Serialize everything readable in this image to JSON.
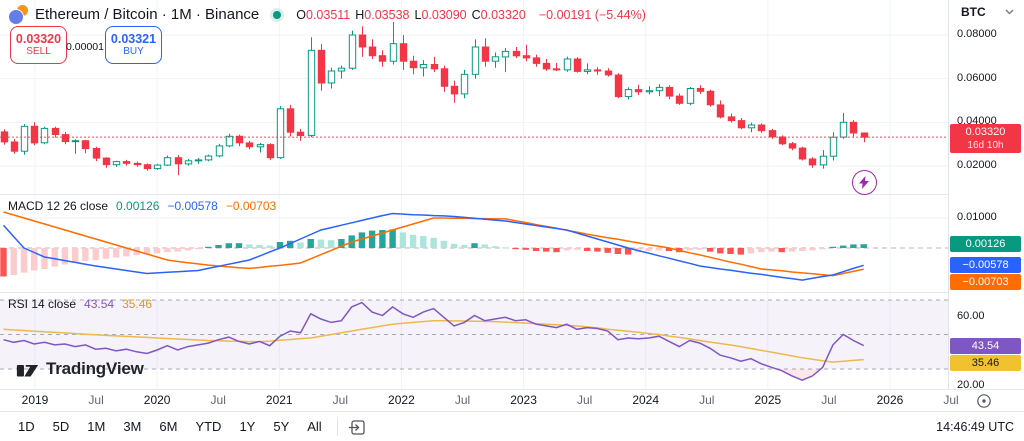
{
  "header": {
    "title": "Ethereum / Bitcoin · 1M · Binance",
    "ohlc": {
      "pairs": [
        {
          "label": "O",
          "value": "0.03511"
        },
        {
          "label": "H",
          "value": "0.03538"
        },
        {
          "label": "L",
          "value": "0.03090"
        },
        {
          "label": "C",
          "value": "0.03320"
        }
      ],
      "change": "−0.00191 (−5.44%)"
    },
    "sell": {
      "price": "0.03320",
      "label": "SELL"
    },
    "spread": "0.00001",
    "buy": {
      "price": "0.03321",
      "label": "BUY"
    }
  },
  "price_axis": {
    "currency": "BTC",
    "ticks": [
      {
        "value": 0.08,
        "label": "0.08000"
      },
      {
        "value": 0.06,
        "label": "0.06000"
      },
      {
        "value": 0.04,
        "label": "0.04000"
      },
      {
        "value": 0.02,
        "label": "0.02000"
      }
    ],
    "last_price_badge": {
      "price": "0.03320",
      "countdown": "16d 10h"
    }
  },
  "macd_panel": {
    "title": "MACD 12 26 close",
    "hist_value": "0.00126",
    "macd_value": "−0.00578",
    "signal_value": "−0.00703",
    "axis_tick": "0.01000"
  },
  "rsi_panel": {
    "title": "RSI 14 close",
    "value": "43.54",
    "ma_value": "35.46",
    "axis_ticks": [
      {
        "value": 60,
        "label": "60.00"
      },
      {
        "value": 20,
        "label": "20.00"
      }
    ]
  },
  "time_axis": {
    "labels": [
      "2019",
      "Jul",
      "2020",
      "Jul",
      "2021",
      "Jul",
      "2022",
      "Jul",
      "2023",
      "Jul",
      "2024",
      "Jul",
      "2025",
      "Jul",
      "2026",
      "Jul"
    ]
  },
  "toolbar": {
    "ranges": [
      "1D",
      "5D",
      "1M",
      "3M",
      "6M",
      "YTD",
      "1Y",
      "5Y",
      "All"
    ],
    "clock": "14:46:49 UTC"
  },
  "watermark": "TradingView",
  "colors": {
    "up": "#089981",
    "down": "#F23645",
    "macd_line": "#2962FF",
    "signal_line": "#FF6D00",
    "hist_grow_above": "#26A69A",
    "hist_fall_above": "#ACE5DC",
    "hist_fall_below": "#FF5252",
    "hist_grow_below": "#FCCBCD",
    "rsi_line": "#7E57C2",
    "rsi_ma_line": "#EDB94C",
    "grid": "#F0F3FA",
    "last_price_line": "#F23645"
  },
  "chart_data": [
    {
      "type": "candlestick",
      "title": "Ethereum / Bitcoin 1M Binance",
      "x_start": "2018-10",
      "x_interval": "1 month",
      "ylim": [
        0.0067,
        0.096
      ],
      "y_ticks": [
        0.08,
        0.06,
        0.04,
        0.02
      ],
      "last_price": 0.0332,
      "ohlc": [
        [
          0.0356,
          0.0368,
          0.0298,
          0.031
        ],
        [
          0.031,
          0.0324,
          0.0256,
          0.0268
        ],
        [
          0.0268,
          0.0392,
          0.0252,
          0.0382
        ],
        [
          0.0382,
          0.04,
          0.0295,
          0.0306
        ],
        [
          0.0306,
          0.038,
          0.03,
          0.0372
        ],
        [
          0.0372,
          0.038,
          0.033,
          0.0344
        ],
        [
          0.0344,
          0.0356,
          0.03,
          0.0312
        ],
        [
          0.0312,
          0.0322,
          0.0256,
          0.0316
        ],
        [
          0.0316,
          0.032,
          0.0258,
          0.028
        ],
        [
          0.028,
          0.0288,
          0.0222,
          0.0236
        ],
        [
          0.0236,
          0.024,
          0.0192,
          0.0206
        ],
        [
          0.0206,
          0.0224,
          0.0196,
          0.022
        ],
        [
          0.022,
          0.0228,
          0.0202,
          0.0212
        ],
        [
          0.0212,
          0.022,
          0.0196,
          0.0206
        ],
        [
          0.0206,
          0.0212,
          0.0178,
          0.0188
        ],
        [
          0.0188,
          0.021,
          0.0182,
          0.0204
        ],
        [
          0.0204,
          0.0248,
          0.02,
          0.0238
        ],
        [
          0.0238,
          0.025,
          0.0158,
          0.021
        ],
        [
          0.021,
          0.0232,
          0.0202,
          0.0224
        ],
        [
          0.0224,
          0.0236,
          0.021,
          0.0228
        ],
        [
          0.0228,
          0.0252,
          0.0222,
          0.0246
        ],
        [
          0.0246,
          0.0302,
          0.024,
          0.0292
        ],
        [
          0.0292,
          0.0348,
          0.0286,
          0.0336
        ],
        [
          0.0336,
          0.0344,
          0.029,
          0.0306
        ],
        [
          0.0306,
          0.0316,
          0.0276,
          0.0288
        ],
        [
          0.0288,
          0.0306,
          0.0262,
          0.0298
        ],
        [
          0.0298,
          0.0304,
          0.0228,
          0.0238
        ],
        [
          0.0238,
          0.0475,
          0.0232,
          0.0462
        ],
        [
          0.0462,
          0.048,
          0.0335,
          0.0355
        ],
        [
          0.0355,
          0.037,
          0.0315,
          0.034
        ],
        [
          0.034,
          0.079,
          0.0332,
          0.073
        ],
        [
          0.073,
          0.076,
          0.0545,
          0.058
        ],
        [
          0.058,
          0.065,
          0.0555,
          0.0635
        ],
        [
          0.0635,
          0.066,
          0.06,
          0.0648
        ],
        [
          0.0648,
          0.082,
          0.064,
          0.08
        ],
        [
          0.08,
          0.084,
          0.07,
          0.0745
        ],
        [
          0.0745,
          0.078,
          0.069,
          0.0705
        ],
        [
          0.0705,
          0.073,
          0.0655,
          0.068
        ],
        [
          0.068,
          0.086,
          0.0665,
          0.076
        ],
        [
          0.076,
          0.08,
          0.064,
          0.068
        ],
        [
          0.068,
          0.0705,
          0.062,
          0.065
        ],
        [
          0.065,
          0.0685,
          0.061,
          0.0665
        ],
        [
          0.0665,
          0.07,
          0.063,
          0.0645
        ],
        [
          0.0645,
          0.066,
          0.054,
          0.0565
        ],
        [
          0.0565,
          0.059,
          0.049,
          0.053
        ],
        [
          0.053,
          0.064,
          0.051,
          0.062
        ],
        [
          0.062,
          0.078,
          0.06,
          0.0745
        ],
        [
          0.0745,
          0.0785,
          0.0655,
          0.068
        ],
        [
          0.068,
          0.072,
          0.065,
          0.07
        ],
        [
          0.07,
          0.074,
          0.063,
          0.0725
        ],
        [
          0.0725,
          0.0745,
          0.0695,
          0.0705
        ],
        [
          0.0705,
          0.0755,
          0.068,
          0.0695
        ],
        [
          0.0695,
          0.071,
          0.0655,
          0.067
        ],
        [
          0.067,
          0.069,
          0.0636,
          0.0645
        ],
        [
          0.0645,
          0.0672,
          0.0635,
          0.064
        ],
        [
          0.064,
          0.07,
          0.0632,
          0.069
        ],
        [
          0.069,
          0.0698,
          0.0628,
          0.0633
        ],
        [
          0.0633,
          0.067,
          0.062,
          0.064
        ],
        [
          0.064,
          0.0652,
          0.0618,
          0.0635
        ],
        [
          0.0635,
          0.0648,
          0.061,
          0.0617
        ],
        [
          0.0617,
          0.0625,
          0.051,
          0.0518
        ],
        [
          0.0518,
          0.056,
          0.0505,
          0.055
        ],
        [
          0.055,
          0.0572,
          0.0525,
          0.054
        ],
        [
          0.054,
          0.0565,
          0.0528,
          0.0545
        ],
        [
          0.0545,
          0.0575,
          0.052,
          0.056
        ],
        [
          0.056,
          0.057,
          0.0505,
          0.052
        ],
        [
          0.052,
          0.0532,
          0.048,
          0.0487
        ],
        [
          0.0487,
          0.0562,
          0.0478,
          0.0555
        ],
        [
          0.0555,
          0.057,
          0.053,
          0.0542
        ],
        [
          0.0542,
          0.055,
          0.0472,
          0.048
        ],
        [
          0.048,
          0.05,
          0.0418,
          0.0425
        ],
        [
          0.0425,
          0.044,
          0.0398,
          0.0408
        ],
        [
          0.0408,
          0.042,
          0.0368,
          0.0375
        ],
        [
          0.0375,
          0.0398,
          0.0355,
          0.0388
        ],
        [
          0.0388,
          0.0395,
          0.0352,
          0.0362
        ],
        [
          0.0362,
          0.037,
          0.0325,
          0.0333
        ],
        [
          0.0333,
          0.034,
          0.0295,
          0.0302
        ],
        [
          0.0302,
          0.031,
          0.0272,
          0.0282
        ],
        [
          0.0282,
          0.0288,
          0.0225,
          0.0232
        ],
        [
          0.0232,
          0.024,
          0.0192,
          0.0205
        ],
        [
          0.0205,
          0.0273,
          0.0188,
          0.0245
        ],
        [
          0.0245,
          0.0355,
          0.0225,
          0.0332
        ],
        [
          0.0332,
          0.0443,
          0.0325,
          0.04
        ],
        [
          0.04,
          0.041,
          0.0335,
          0.0351
        ],
        [
          0.03511,
          0.03538,
          0.0309,
          0.0332
        ]
      ]
    },
    {
      "type": "macd",
      "params": "12 26 close",
      "y_tick": 0.01,
      "hist": [
        -0.0095,
        -0.009,
        -0.0082,
        -0.0075,
        -0.007,
        -0.0062,
        -0.0055,
        -0.005,
        -0.0044,
        -0.004,
        -0.0036,
        -0.0032,
        -0.0028,
        -0.0024,
        -0.0022,
        -0.0018,
        -0.0014,
        -0.0012,
        -0.0008,
        -0.0004,
        0.0004,
        0.001,
        0.0016,
        0.0016,
        0.0012,
        0.001,
        0.0008,
        0.002,
        0.0024,
        0.0018,
        0.003,
        0.0028,
        0.0026,
        0.003,
        0.0042,
        0.0052,
        0.0058,
        0.006,
        0.0062,
        0.0052,
        0.0044,
        0.004,
        0.0034,
        0.0024,
        0.0014,
        0.001,
        0.0016,
        0.0012,
        0.0006,
        0.0002,
        -0.0004,
        -0.0006,
        -0.001,
        -0.0012,
        -0.0014,
        -0.0008,
        -0.0006,
        -0.001,
        -0.0012,
        -0.0016,
        -0.002,
        -0.0022,
        -0.0014,
        -0.001,
        -0.0008,
        -0.001,
        -0.0014,
        -0.0008,
        -0.0006,
        -0.0012,
        -0.0018,
        -0.002,
        -0.0022,
        -0.0018,
        -0.0014,
        -0.0012,
        -0.0014,
        -0.0012,
        -0.001,
        -0.0008,
        -0.0004,
        0.0004,
        0.0008,
        0.0012,
        0.00126
      ],
      "macd": [
        0.0076,
        0.0038,
        0,
        -0.0015,
        -0.003,
        -0.0036,
        -0.0042,
        -0.0048,
        -0.0054,
        -0.006,
        -0.0065,
        -0.007,
        -0.0075,
        -0.008,
        -0.0085,
        -0.0083,
        -0.0081,
        -0.0079,
        -0.0077,
        -0.0075,
        -0.0068,
        -0.0061,
        -0.0054,
        -0.0047,
        -0.004,
        -0.0027,
        -0.0013,
        0,
        0.0015,
        0.003,
        0.0045,
        0.006,
        0.0068,
        0.0076,
        0.0084,
        0.0092,
        0.01,
        0.0108,
        0.0115,
        0.0113,
        0.0111,
        0.011,
        0.0108,
        0.0107,
        0.0105,
        0.0102,
        0.0099,
        0.0096,
        0.0093,
        0.009,
        0.0085,
        0.008,
        0.0075,
        0.007,
        0.0065,
        0.006,
        0.005,
        0.004,
        0.003,
        0.002,
        0.001,
        0,
        -0.0009,
        -0.0017,
        -0.0026,
        -0.0034,
        -0.0043,
        -0.0051,
        -0.006,
        -0.0065,
        -0.007,
        -0.0074,
        -0.0079,
        -0.0084,
        -0.0088,
        -0.0093,
        -0.0098,
        -0.0102,
        -0.0107,
        -0.0101,
        -0.0095,
        -0.009,
        -0.0079,
        -0.0068,
        -0.00578
      ],
      "signal": [
        0.012,
        0.011,
        0.01,
        0.009,
        0.008,
        0.007,
        0.006,
        0.005,
        0.004,
        0.003,
        0.002,
        0.001,
        0,
        -0.001,
        -0.002,
        -0.003,
        -0.004,
        -0.0045,
        -0.0049,
        -0.0053,
        -0.0057,
        -0.006,
        -0.0063,
        -0.0066,
        -0.0068,
        -0.0065,
        -0.0061,
        -0.0058,
        -0.0054,
        -0.005,
        -0.0036,
        -0.0022,
        -0.0008,
        0.0006,
        0.002,
        0.003,
        0.004,
        0.005,
        0.006,
        0.007,
        0.008,
        0.009,
        0.01,
        0.01,
        0.0099,
        0.0099,
        0.0098,
        0.0098,
        0.0097,
        0.0097,
        0.0091,
        0.0085,
        0.0078,
        0.0072,
        0.0066,
        0.0059,
        0.0053,
        0.0046,
        0.004,
        0.0034,
        0.0029,
        0.0023,
        0.0017,
        0.0011,
        0.0006,
        0,
        -0.0008,
        -0.0016,
        -0.0023,
        -0.0031,
        -0.0039,
        -0.0047,
        -0.0054,
        -0.0062,
        -0.007,
        -0.0073,
        -0.0076,
        -0.008,
        -0.0083,
        -0.0086,
        -0.0089,
        -0.0092,
        -0.0085,
        -0.0078,
        -0.00703
      ]
    },
    {
      "type": "line",
      "name": "RSI 14",
      "levels": [
        30,
        50,
        70
      ],
      "ylim": [
        15,
        75
      ],
      "rsi": [
        47,
        45.5,
        46.5,
        44.5,
        45.5,
        44,
        44.5,
        43,
        44,
        41.5,
        42,
        40.5,
        41.5,
        40,
        39,
        41,
        43.5,
        41,
        43,
        44,
        45,
        47,
        48.5,
        46,
        44.5,
        46,
        43.5,
        49,
        52,
        51,
        62,
        59,
        57,
        58,
        66,
        68.5,
        63,
        61,
        66,
        62,
        60,
        63,
        65,
        60,
        55,
        57,
        61,
        58,
        59,
        60,
        58,
        58.5,
        56,
        55,
        54,
        56,
        53,
        54,
        53.5,
        52,
        47,
        48,
        47.5,
        48,
        49,
        46,
        43,
        46.5,
        45,
        42,
        38,
        36.5,
        34.5,
        36,
        33,
        31,
        29,
        26,
        23.5,
        26,
        31,
        44,
        50,
        46.5,
        43.54
      ],
      "ma": [
        53,
        52.6,
        52.3,
        51.9,
        51.6,
        51.2,
        50.9,
        50.5,
        50.2,
        49.8,
        49.5,
        49.2,
        48.9,
        48.6,
        48.3,
        48,
        47.7,
        47.4,
        47.1,
        46.8,
        46.5,
        46.4,
        46.2,
        46.1,
        45.9,
        45.8,
        46.2,
        46.7,
        47.1,
        47.6,
        48,
        49,
        50,
        51,
        52,
        53,
        54,
        55,
        56,
        56.5,
        57,
        57.5,
        58,
        58,
        57.9,
        57.8,
        57.7,
        57.6,
        57.5,
        57.2,
        56.9,
        56.6,
        56.3,
        56,
        55.7,
        55.3,
        55,
        54.4,
        53.8,
        53.1,
        52.5,
        51.9,
        51.3,
        50.6,
        50,
        49.1,
        48.3,
        47.4,
        46.5,
        45.6,
        44.8,
        43.9,
        43,
        41.9,
        40.8,
        39.8,
        38.7,
        37.6,
        36.5,
        35.7,
        34.8,
        34,
        34.5,
        35,
        35.46
      ]
    }
  ]
}
